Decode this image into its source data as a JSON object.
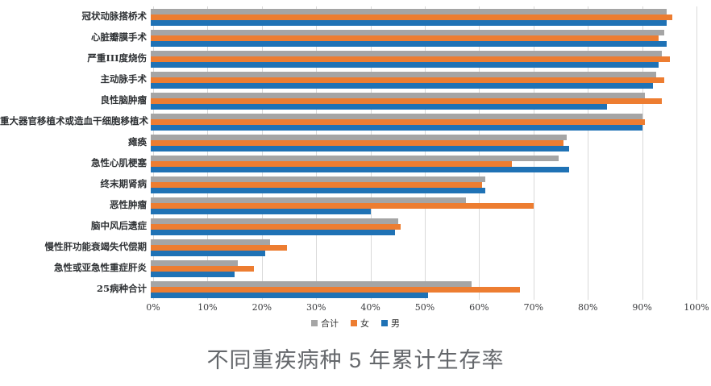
{
  "chart_data": {
    "type": "bar",
    "orientation": "horizontal",
    "title": "不同重疾病种 5 年累计生存率",
    "categories": [
      "冠状动脉搭桥术",
      "心脏瓣膜手术",
      "严重III度烧伤",
      "主动脉手术",
      "良性脑肿瘤",
      "重大器官移植术或造血干细胞移植术",
      "瘫痪",
      "急性心肌梗塞",
      "终末期肾病",
      "恶性肿瘤",
      "脑中风后遗症",
      "慢性肝功能衰竭失代偿期",
      "急性或亚急性重症肝炎",
      "25病种合计"
    ],
    "series": [
      {
        "name": "合计",
        "color": "#A5A5A5",
        "values": [
          95,
          94.5,
          94,
          93,
          91,
          90.5,
          76.5,
          75,
          61.5,
          58,
          45.5,
          22,
          16,
          59
        ]
      },
      {
        "name": "女",
        "color": "#ED7D31",
        "values": [
          96,
          93.5,
          95.5,
          94.5,
          94,
          91,
          76,
          66.5,
          61,
          70.5,
          46,
          25,
          19,
          68
        ]
      },
      {
        "name": "男",
        "color": "#1F72B5",
        "values": [
          95,
          95,
          93.5,
          92.5,
          84,
          90.5,
          77,
          77,
          61.5,
          40.5,
          45,
          21,
          15.5,
          51
        ]
      }
    ],
    "x_axis": {
      "min": 0,
      "max": 100,
      "tick_step": 10,
      "unit": "%",
      "tick_labels": [
        "0%",
        "10%",
        "20%",
        "30%",
        "40%",
        "50%",
        "60%",
        "70%",
        "80%",
        "90%",
        "100%"
      ]
    },
    "legend": {
      "position": "bottom",
      "entries": [
        "合计",
        "女",
        "男"
      ]
    },
    "grid": "vertical-only",
    "gridline_color": "#D9D9D9",
    "background_color": "#FFFFFF"
  }
}
